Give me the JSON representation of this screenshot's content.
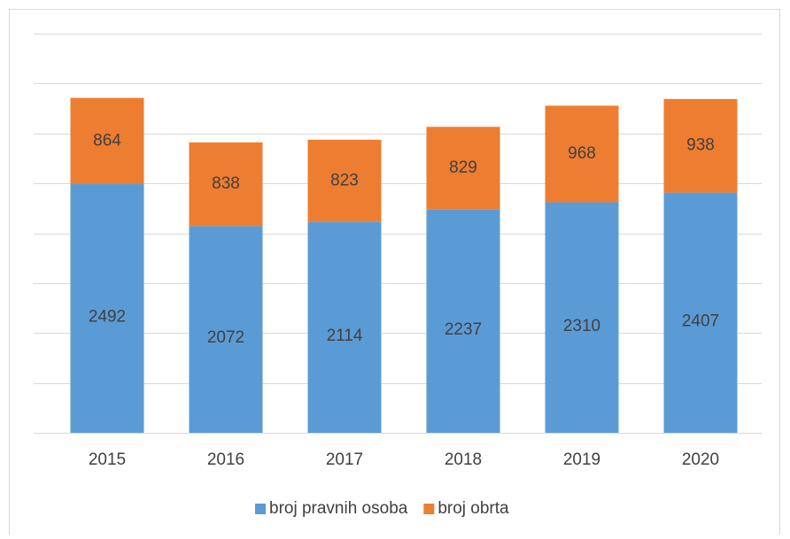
{
  "chart_data": {
    "type": "stacked_bar",
    "categories": [
      "2015",
      "2016",
      "2017",
      "2018",
      "2019",
      "2020"
    ],
    "series": [
      {
        "name": "broj pravnih osoba",
        "color": "#5b9bd5",
        "values": [
          2492,
          2072,
          2114,
          2237,
          2310,
          2407
        ]
      },
      {
        "name": "broj obrta",
        "color": "#ed7d31",
        "values": [
          864,
          838,
          823,
          829,
          968,
          938
        ]
      }
    ],
    "ylim": [
      0,
      4000
    ],
    "yticks": [
      0,
      500,
      1000,
      1500,
      2000,
      2500,
      3000,
      3500,
      4000
    ],
    "grid": true,
    "legend": "bottom"
  }
}
